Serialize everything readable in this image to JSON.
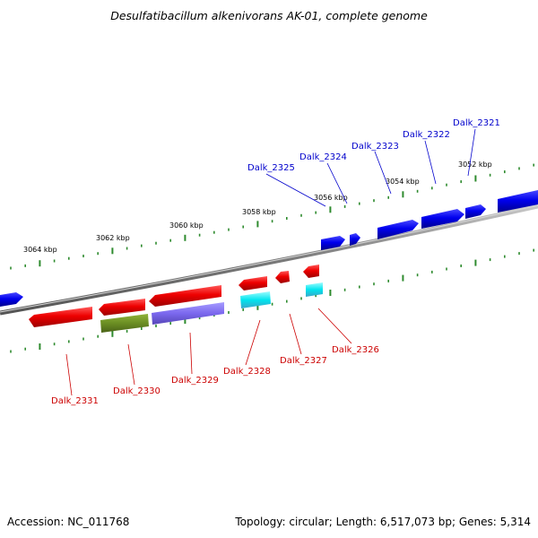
{
  "title": "Desulfatibacillum alkenivorans AK-01, complete genome",
  "footer": {
    "accession": "Accession: NC_011768",
    "summary": "Topology: circular; Length: 6,517,073 bp; Genes: 5,314"
  },
  "scale_labels": [
    "3064 kbp",
    "3062 kbp",
    "3060 kbp",
    "3058 kbp",
    "3056 kbp",
    "3054 kbp",
    "3052 kbp"
  ],
  "top_gene_labels": [
    "Dalk_2325",
    "Dalk_2324",
    "Dalk_2323",
    "Dalk_2322",
    "Dalk_2321"
  ],
  "bottom_gene_labels": [
    "Dalk_2331",
    "Dalk_2330",
    "Dalk_2329",
    "Dalk_2328",
    "Dalk_2327",
    "Dalk_2326"
  ],
  "colors": {
    "forward_strand": "#0000ee",
    "reverse_strand": "#ee0000",
    "tick_marks": "#2e8b2e",
    "backbone": "#8a8a8a",
    "cyan_gene": "#00e5ee",
    "olive_gene": "#6b8e23",
    "slate_gene": "#7b68ee"
  }
}
